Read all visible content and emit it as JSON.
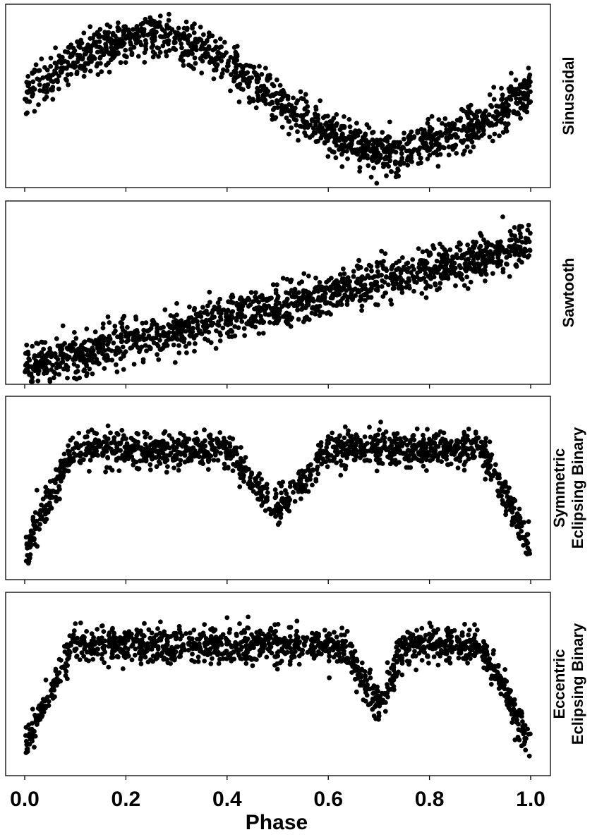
{
  "figure": {
    "xlabel": "Phase",
    "xticks": [
      "0.0",
      "0.2",
      "0.4",
      "0.6",
      "0.8",
      "1.0"
    ],
    "point_color": "#000000"
  },
  "chart_data": [
    {
      "type": "scatter",
      "label_lines": [
        "Sinusoidal"
      ],
      "xlim": [
        0,
        1
      ],
      "ylim": [
        -1.2,
        1.15
      ],
      "grid": false,
      "model": "sinusoidal",
      "curve": {
        "x": [
          0.0,
          0.1,
          0.2,
          0.25,
          0.3,
          0.4,
          0.5,
          0.6,
          0.7,
          0.75,
          0.8,
          0.9,
          1.0
        ],
        "y": [
          0.0,
          0.45,
          0.72,
          0.75,
          0.7,
          0.4,
          -0.1,
          -0.5,
          -0.75,
          -0.75,
          -0.6,
          -0.4,
          0.05
        ]
      },
      "scatter_sd": 0.14,
      "n_points": 1400
    },
    {
      "type": "scatter",
      "label_lines": [
        "Sawtooth"
      ],
      "xlim": [
        0,
        1
      ],
      "ylim": [
        -1.0,
        1.35
      ],
      "grid": false,
      "model": "sawtooth",
      "curve": {
        "x": [
          0.0,
          0.5,
          1.0
        ],
        "y": [
          -0.78,
          0.0,
          0.78
        ]
      },
      "scatter_sd": 0.14,
      "n_points": 1400
    },
    {
      "type": "scatter",
      "label_lines": [
        "Symmetric",
        "Eclipsing Binary"
      ],
      "xlim": [
        0,
        1
      ],
      "ylim": [
        -1.6,
        0.65
      ],
      "grid": false,
      "model": "symmetric eclipsing binary",
      "curve": {
        "x": [
          0.0,
          0.05,
          0.1,
          0.4,
          0.5,
          0.6,
          0.9,
          0.95,
          1.0
        ],
        "y": [
          -1.25,
          -0.55,
          0.0,
          0.0,
          -0.75,
          0.0,
          0.0,
          -0.55,
          -1.25
        ]
      },
      "scatter_sd": 0.11,
      "n_points": 1400
    },
    {
      "type": "scatter",
      "label_lines": [
        "Eccentric",
        "Eclipsing Binary"
      ],
      "xlim": [
        0,
        1
      ],
      "ylim": [
        -1.6,
        0.65
      ],
      "grid": false,
      "model": "eccentric eclipsing binary",
      "curve": {
        "x": [
          0.0,
          0.05,
          0.1,
          0.63,
          0.7,
          0.75,
          0.9,
          0.95,
          1.0
        ],
        "y": [
          -1.25,
          -0.55,
          0.0,
          0.0,
          -0.75,
          0.0,
          0.0,
          -0.55,
          -1.25
        ]
      },
      "scatter_sd": 0.11,
      "n_points": 1400
    }
  ]
}
